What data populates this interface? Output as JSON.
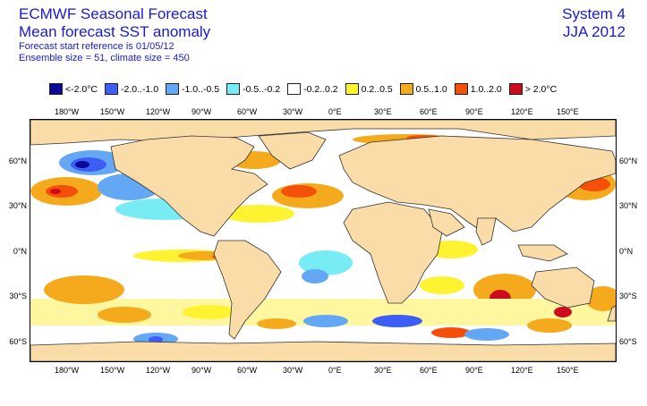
{
  "header": {
    "title_line1": "ECMWF Seasonal Forecast",
    "title_line2": "Mean forecast SST anomaly",
    "subtitle_line1": "Forecast start reference is 01/05/12",
    "subtitle_line2": "Ensemble size = 51, climate size = 450",
    "system": "System 4",
    "period": "JJA 2012"
  },
  "legend": [
    {
      "label": "<-2.0°C",
      "color": "#0a0a9a"
    },
    {
      "label": "-2.0..-1.0",
      "color": "#3c5ef5"
    },
    {
      "label": "-1.0..-0.5",
      "color": "#64a8f5"
    },
    {
      "label": "-0.5..-0.2",
      "color": "#78ecf5"
    },
    {
      "label": "-0.2..0.2",
      "color": "#ffffff"
    },
    {
      "label": "0.2..0.5",
      "color": "#fff230"
    },
    {
      "label": "0.5..1.0",
      "color": "#f5aa1e"
    },
    {
      "label": "1.0..2.0",
      "color": "#f5500a"
    },
    {
      "label": "> 2.0°C",
      "color": "#cd0a1e"
    }
  ],
  "lon_labels": [
    "180°W",
    "150°W",
    "120°W",
    "90°W",
    "60°W",
    "30°W",
    "0°E",
    "30°E",
    "60°E",
    "90°E",
    "120°E",
    "150°E"
  ],
  "lat_labels": [
    "60°N",
    "30°N",
    "0°N",
    "30°S",
    "60°S"
  ],
  "colors": {
    "land": "#f9dca7",
    "coast": "#333333",
    "title": "#1a1ad0"
  }
}
